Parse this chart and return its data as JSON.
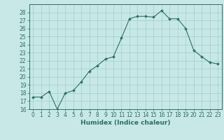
{
  "x": [
    0,
    1,
    2,
    3,
    4,
    5,
    6,
    7,
    8,
    9,
    10,
    11,
    12,
    13,
    14,
    15,
    16,
    17,
    18,
    19,
    20,
    21,
    22,
    23
  ],
  "y": [
    17.5,
    17.5,
    18.2,
    16.0,
    18.0,
    18.3,
    19.4,
    20.7,
    21.4,
    22.2,
    22.5,
    24.8,
    27.2,
    27.5,
    27.5,
    27.4,
    28.2,
    27.2,
    27.2,
    26.0,
    23.3,
    22.5,
    21.8,
    21.6
  ],
  "line_color": "#2d6e63",
  "marker": "D",
  "marker_size": 2.0,
  "bg_color": "#c8e8e8",
  "grid_color": "#9ecece",
  "xlabel": "Humidex (Indice chaleur)",
  "ylim": [
    16,
    29
  ],
  "xlim": [
    -0.5,
    23.5
  ],
  "yticks": [
    16,
    17,
    18,
    19,
    20,
    21,
    22,
    23,
    24,
    25,
    26,
    27,
    28
  ],
  "xticks": [
    0,
    1,
    2,
    3,
    4,
    5,
    6,
    7,
    8,
    9,
    10,
    11,
    12,
    13,
    14,
    15,
    16,
    17,
    18,
    19,
    20,
    21,
    22,
    23
  ],
  "tick_color": "#2d6e63",
  "label_color": "#2d6e63",
  "spine_color": "#2d6e63",
  "xlabel_fontsize": 6.5,
  "tick_fontsize": 5.5
}
